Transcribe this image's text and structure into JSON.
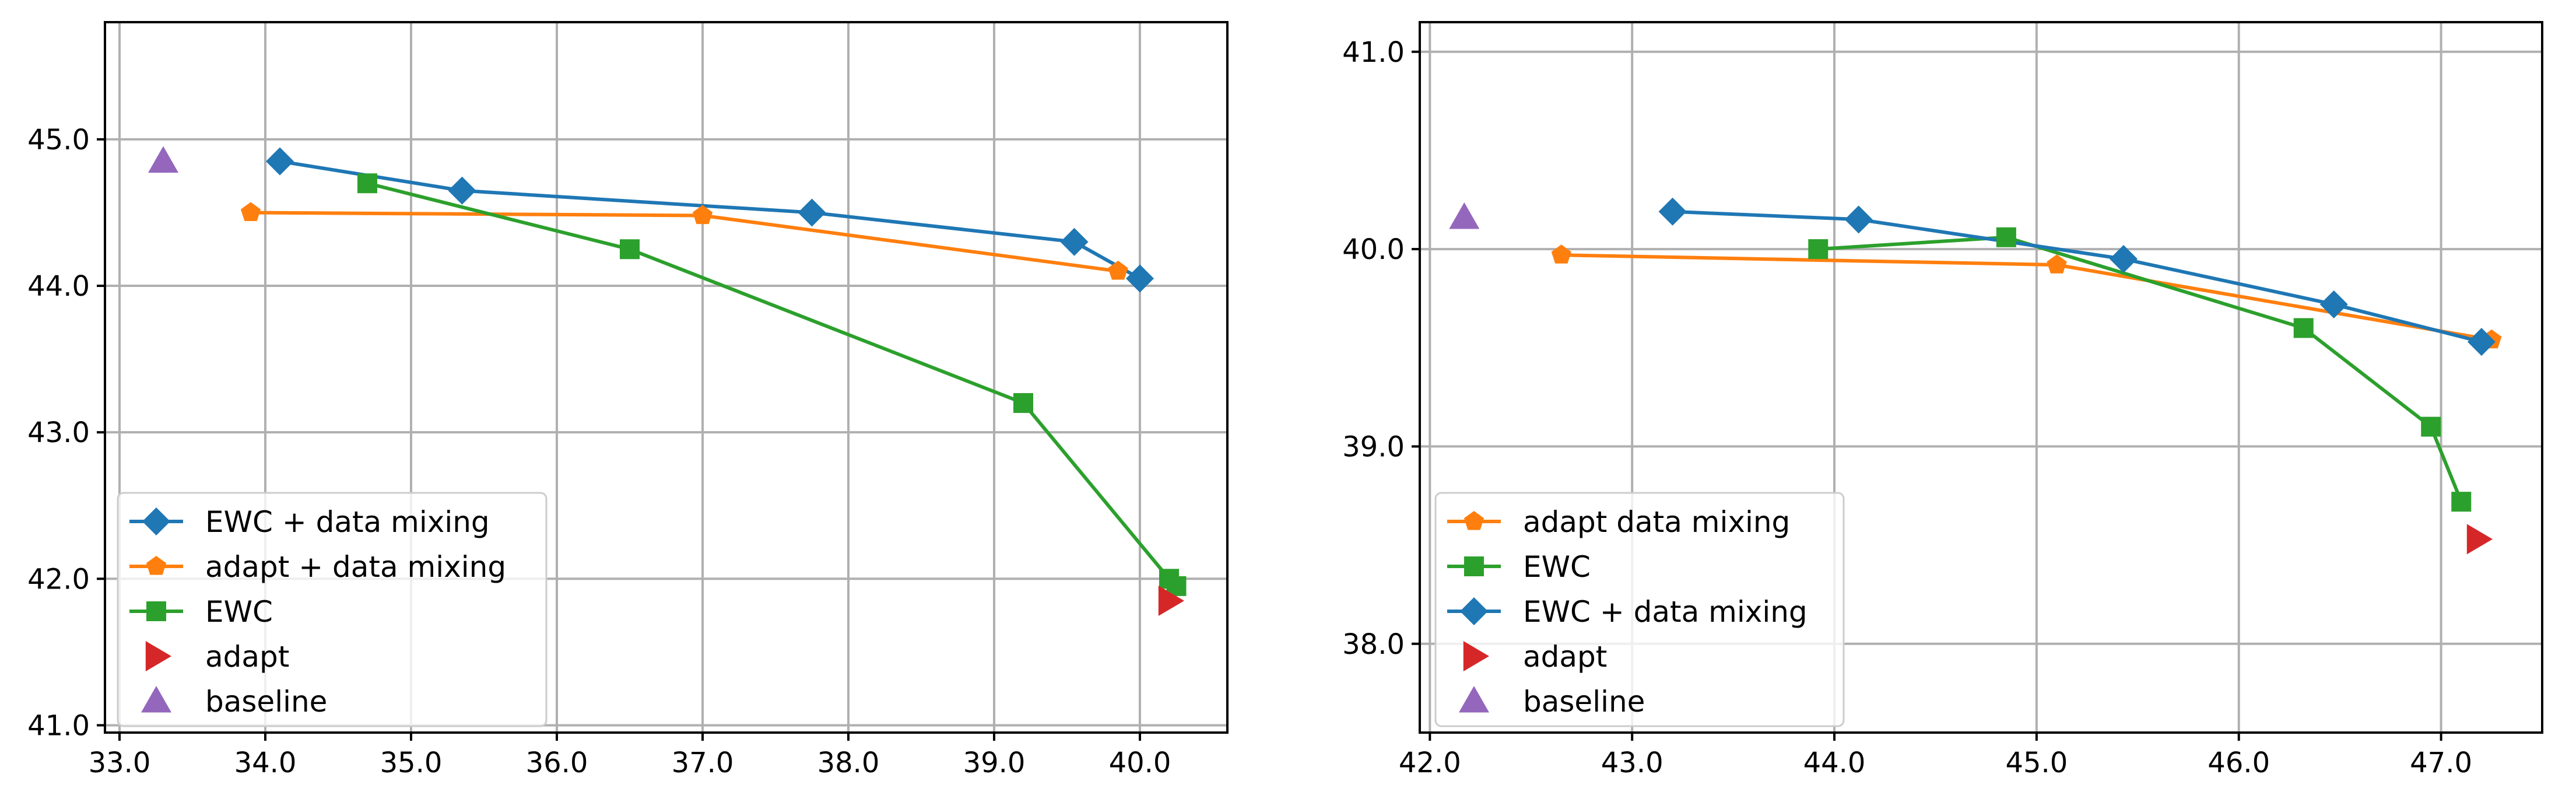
{
  "chart_data": [
    {
      "type": "line",
      "title": "",
      "xlabel": "",
      "ylabel": "",
      "xlim": [
        32.9,
        40.6
      ],
      "ylim": [
        40.95,
        45.8
      ],
      "grid": true,
      "xticks": [
        33.0,
        34.0,
        35.0,
        36.0,
        37.0,
        38.0,
        39.0,
        40.0
      ],
      "xtick_labels": [
        "33.0",
        "34.0",
        "35.0",
        "36.0",
        "37.0",
        "38.0",
        "39.0",
        "40.0"
      ],
      "yticks": [
        41.0,
        42.0,
        43.0,
        44.0,
        45.0
      ],
      "ytick_labels": [
        "41.0",
        "42.0",
        "43.0",
        "44.0",
        "45.0"
      ],
      "legend_position": "lower-left",
      "series": [
        {
          "name": "EWC + data mixing",
          "color": "#1f77b4",
          "marker": "diamond",
          "line": true,
          "x": [
            34.1,
            35.35,
            37.75,
            39.55,
            40.0
          ],
          "y": [
            44.85,
            44.65,
            44.5,
            44.3,
            44.05
          ]
        },
        {
          "name": "adapt + data mixing",
          "color": "#ff7f0e",
          "marker": "pentagon",
          "line": true,
          "x": [
            33.9,
            37.0,
            39.85
          ],
          "y": [
            44.5,
            44.48,
            44.1
          ]
        },
        {
          "name": "EWC",
          "color": "#2ca02c",
          "marker": "square",
          "line": true,
          "x": [
            34.7,
            36.5,
            39.2,
            40.2,
            40.25
          ],
          "y": [
            44.7,
            44.25,
            43.2,
            42.0,
            41.95
          ]
        },
        {
          "name": "adapt",
          "color": "#d62728",
          "marker": "triangle-right",
          "line": false,
          "x": [
            40.2
          ],
          "y": [
            41.85
          ]
        },
        {
          "name": "baseline",
          "color": "#9467bd",
          "marker": "triangle-up",
          "line": false,
          "x": [
            33.3
          ],
          "y": [
            44.85
          ]
        }
      ]
    },
    {
      "type": "line",
      "title": "",
      "xlabel": "",
      "ylabel": "",
      "xlim": [
        41.95,
        47.5
      ],
      "ylim": [
        37.55,
        41.15
      ],
      "grid": true,
      "xticks": [
        42.0,
        43.0,
        44.0,
        45.0,
        46.0,
        47.0
      ],
      "xtick_labels": [
        "42.0",
        "43.0",
        "44.0",
        "45.0",
        "46.0",
        "47.0"
      ],
      "yticks": [
        38.0,
        39.0,
        40.0,
        41.0
      ],
      "ytick_labels": [
        "38.0",
        "39.0",
        "40.0",
        "41.0"
      ],
      "legend_position": "lower-left",
      "series": [
        {
          "name": "adapt data mixing",
          "color": "#ff7f0e",
          "marker": "pentagon",
          "line": true,
          "x": [
            42.65,
            45.1,
            47.25
          ],
          "y": [
            39.97,
            39.92,
            39.54
          ]
        },
        {
          "name": "EWC",
          "color": "#2ca02c",
          "marker": "square",
          "line": true,
          "x": [
            43.92,
            44.85,
            46.32,
            46.95,
            47.1
          ],
          "y": [
            40.0,
            40.06,
            39.6,
            39.1,
            38.72
          ]
        },
        {
          "name": "EWC + data mixing",
          "color": "#1f77b4",
          "marker": "diamond",
          "line": true,
          "x": [
            43.2,
            44.12,
            45.43,
            46.47,
            47.2
          ],
          "y": [
            40.19,
            40.15,
            39.95,
            39.72,
            39.53
          ]
        },
        {
          "name": "adapt",
          "color": "#d62728",
          "marker": "triangle-right",
          "line": false,
          "x": [
            47.18
          ],
          "y": [
            38.53
          ]
        },
        {
          "name": "baseline",
          "color": "#9467bd",
          "marker": "triangle-up",
          "line": false,
          "x": [
            42.17
          ],
          "y": [
            40.16
          ]
        }
      ],
      "legend_markers_only": [
        "EWC",
        "EWC + data mixing",
        "adapt",
        "baseline"
      ]
    }
  ]
}
